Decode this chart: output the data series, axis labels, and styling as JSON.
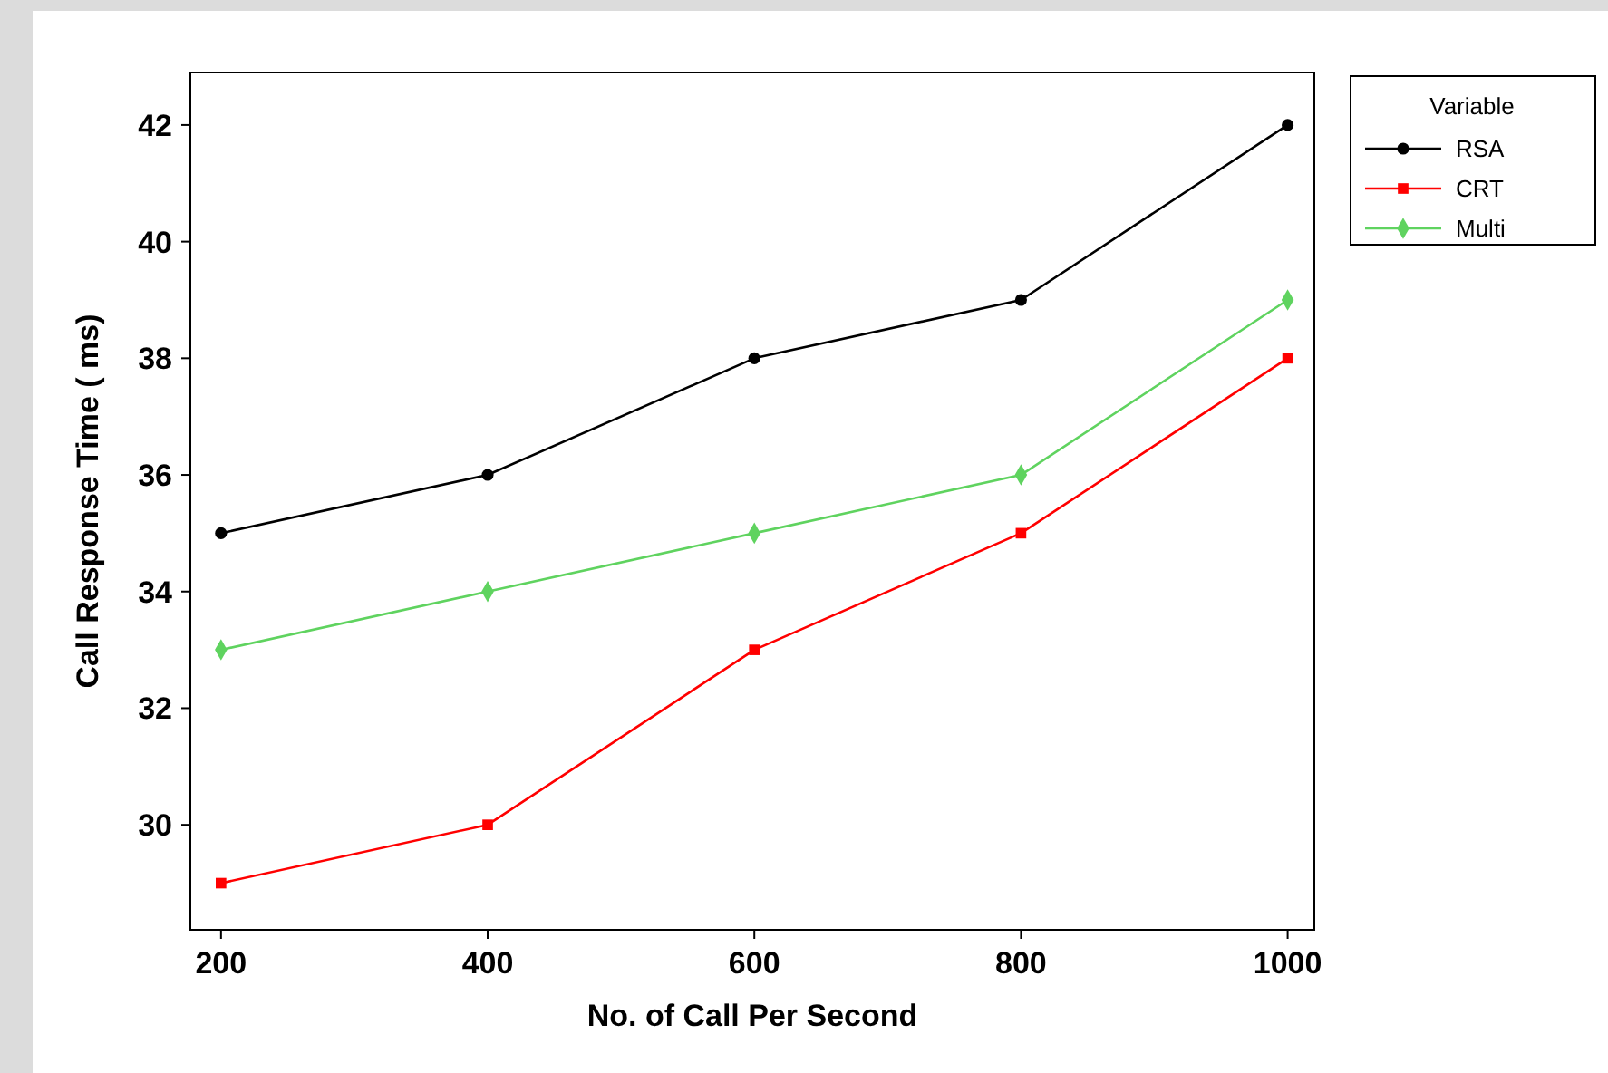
{
  "chart_data": {
    "type": "line",
    "xlabel": "No. of Call Per Second",
    "ylabel": "Call Response Time ( ms)",
    "legend_title": "Variable",
    "x": [
      200,
      400,
      600,
      800,
      1000
    ],
    "series": [
      {
        "name": "RSA",
        "color": "#000000",
        "marker": "circle",
        "values": [
          35,
          36,
          38,
          39,
          42
        ]
      },
      {
        "name": "CRT",
        "color": "#ff0000",
        "marker": "square",
        "values": [
          29,
          30,
          33,
          35,
          38
        ]
      },
      {
        "name": "Multi",
        "color": "#5fd35f",
        "marker": "diamond",
        "values": [
          33,
          34,
          35,
          36,
          39
        ]
      }
    ],
    "xlim": [
      177,
      1020
    ],
    "ylim": [
      28.2,
      42.9
    ],
    "xticks": [
      200,
      400,
      600,
      800,
      1000
    ],
    "yticks": [
      30,
      32,
      34,
      36,
      38,
      40,
      42
    ],
    "grid": false,
    "legend": "top right",
    "line_style": "solid"
  }
}
